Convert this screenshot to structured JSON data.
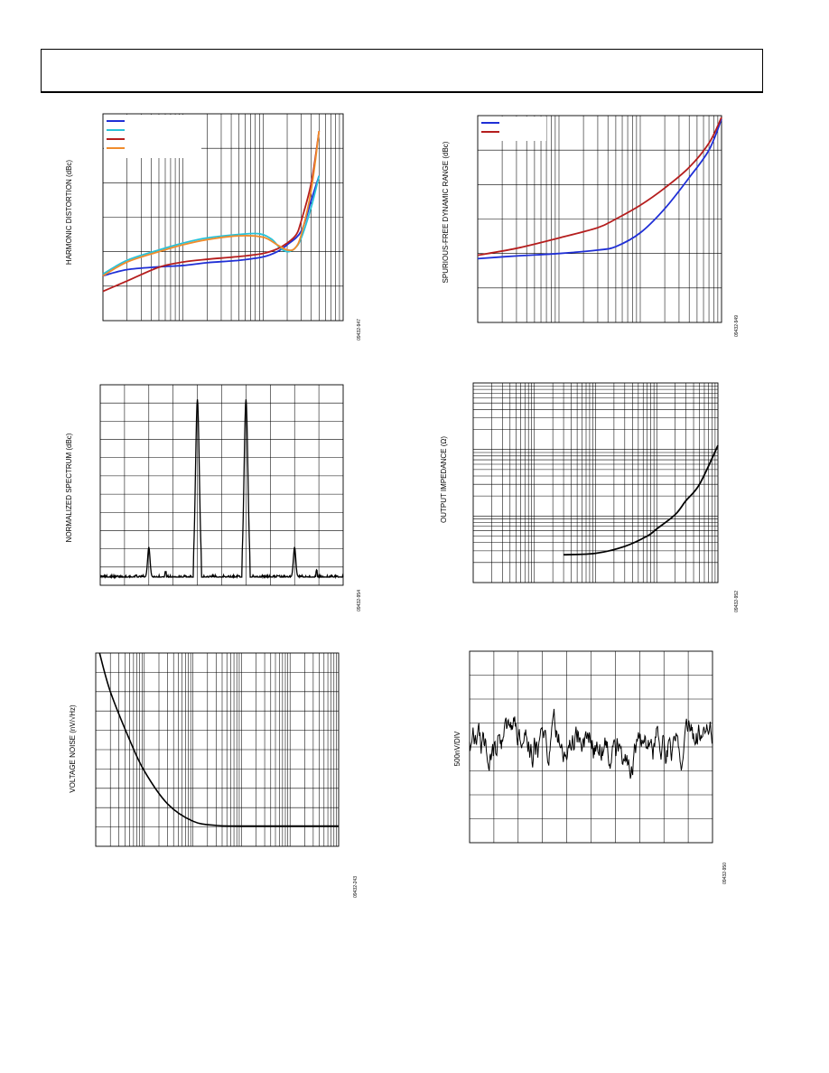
{
  "page": {
    "header_box": ""
  },
  "chart_data": [
    {
      "id": "hd",
      "type": "line",
      "ylabel": "HARMONIC DISTORTION (dBc)",
      "code": "09432-947",
      "x_scale": "log",
      "xlim": [
        1,
        1000
      ],
      "ylim": [
        0,
        6
      ],
      "legend": "top-left",
      "series": [
        {
          "color": "#1f2fd6",
          "points": [
            [
              1,
              1.3
            ],
            [
              2,
              1.48
            ],
            [
              5,
              1.56
            ],
            [
              10,
              1.6
            ],
            [
              20,
              1.68
            ],
            [
              50,
              1.75
            ],
            [
              100,
              1.85
            ],
            [
              150,
              2.0
            ],
            [
              200,
              2.2
            ],
            [
              300,
              2.6
            ],
            [
              400,
              3.5
            ],
            [
              500,
              4.2
            ]
          ]
        },
        {
          "color": "#29c2d8",
          "points": [
            [
              1,
              1.35
            ],
            [
              2,
              1.75
            ],
            [
              5,
              2.05
            ],
            [
              10,
              2.25
            ],
            [
              20,
              2.4
            ],
            [
              50,
              2.5
            ],
            [
              90,
              2.52
            ],
            [
              130,
              2.35
            ],
            [
              160,
              2.12
            ],
            [
              200,
              2.0
            ],
            [
              250,
              2.1
            ],
            [
              300,
              2.4
            ],
            [
              400,
              3.3
            ],
            [
              500,
              4.2
            ]
          ]
        },
        {
          "color": "#b51e1e",
          "points": [
            [
              1,
              0.85
            ],
            [
              2,
              1.15
            ],
            [
              5,
              1.55
            ],
            [
              10,
              1.7
            ],
            [
              20,
              1.78
            ],
            [
              50,
              1.86
            ],
            [
              100,
              1.95
            ],
            [
              150,
              2.08
            ],
            [
              200,
              2.25
            ],
            [
              260,
              2.5
            ],
            [
              300,
              2.9
            ],
            [
              400,
              4.0
            ],
            [
              500,
              5.5
            ]
          ]
        },
        {
          "color": "#f08c2c",
          "points": [
            [
              1,
              1.3
            ],
            [
              2,
              1.7
            ],
            [
              5,
              2.0
            ],
            [
              10,
              2.2
            ],
            [
              20,
              2.35
            ],
            [
              50,
              2.46
            ],
            [
              100,
              2.42
            ],
            [
              150,
              2.2
            ],
            [
              200,
              2.05
            ],
            [
              250,
              2.1
            ],
            [
              300,
              2.5
            ],
            [
              400,
              3.8
            ],
            [
              500,
              5.5
            ]
          ]
        }
      ]
    },
    {
      "id": "sfdr",
      "type": "line",
      "ylabel": "SPURIOUS-FREE DYNAMIC RANGE (dBc)",
      "code": "09432-949",
      "x_scale": "log",
      "xlim": [
        1,
        1000
      ],
      "ylim": [
        0,
        6
      ],
      "legend": "top-left",
      "series": [
        {
          "color": "#1f2fd6",
          "points": [
            [
              1,
              1.85
            ],
            [
              3,
              1.93
            ],
            [
              10,
              2.0
            ],
            [
              30,
              2.1
            ],
            [
              50,
              2.2
            ],
            [
              100,
              2.6
            ],
            [
              200,
              3.3
            ],
            [
              400,
              4.2
            ],
            [
              700,
              5.0
            ],
            [
              1000,
              5.9
            ]
          ]
        },
        {
          "color": "#b51e1e",
          "points": [
            [
              1,
              1.95
            ],
            [
              3,
              2.15
            ],
            [
              10,
              2.45
            ],
            [
              30,
              2.75
            ],
            [
              50,
              3.0
            ],
            [
              100,
              3.4
            ],
            [
              200,
              3.9
            ],
            [
              400,
              4.5
            ],
            [
              700,
              5.2
            ],
            [
              1000,
              5.95
            ]
          ]
        }
      ]
    },
    {
      "id": "spectrum",
      "type": "line",
      "ylabel": "NORMALIZED SPECTRUM (dBc)",
      "code": "09432-954",
      "xlim": [
        0,
        10
      ],
      "ylim": [
        0,
        11
      ],
      "peaks": [
        [
          2,
          2.1
        ],
        [
          4,
          10.2
        ],
        [
          6,
          10.2
        ],
        [
          8,
          2.1
        ]
      ],
      "noise_floor": 0.45
    },
    {
      "id": "zout",
      "type": "line",
      "ylabel": "OUTPUT IMPEDANCE (Ω)",
      "code": "09432-952",
      "x_scale": "log",
      "xlim": [
        1,
        10000
      ],
      "y_scale": "log",
      "ylim": [
        0.1,
        100
      ],
      "series": [
        {
          "color": "#000000",
          "points": [
            [
              30,
              0.262
            ],
            [
              100,
              0.275
            ],
            [
              300,
              0.35
            ],
            [
              700,
              0.5
            ],
            [
              1000,
              0.64
            ],
            [
              2000,
              1.05
            ],
            [
              3000,
              1.7
            ],
            [
              5000,
              3.0
            ],
            [
              10000,
              11.5
            ]
          ]
        }
      ]
    },
    {
      "id": "vnoise",
      "type": "line",
      "ylabel": "VOLTAGE NOISE (nV/√Hz)",
      "code": "09432-243",
      "x_scale": "log",
      "xlim": [
        10,
        1000000
      ],
      "ylim": [
        0,
        10
      ],
      "series": [
        {
          "color": "#000000",
          "points": [
            [
              12,
              10.0
            ],
            [
              20,
              8.0
            ],
            [
              50,
              5.5
            ],
            [
              100,
              3.9
            ],
            [
              300,
              2.2
            ],
            [
              1000,
              1.3
            ],
            [
              3000,
              1.08
            ],
            [
              10000,
              1.05
            ],
            [
              1000000,
              1.05
            ]
          ]
        }
      ]
    },
    {
      "id": "noise-time",
      "type": "line",
      "ylabel": "500nV/DIV",
      "code": "09432-950",
      "xlim": [
        0,
        10
      ],
      "ylim": [
        0,
        8
      ],
      "center": 4.0,
      "amplitude": 0.95
    }
  ]
}
